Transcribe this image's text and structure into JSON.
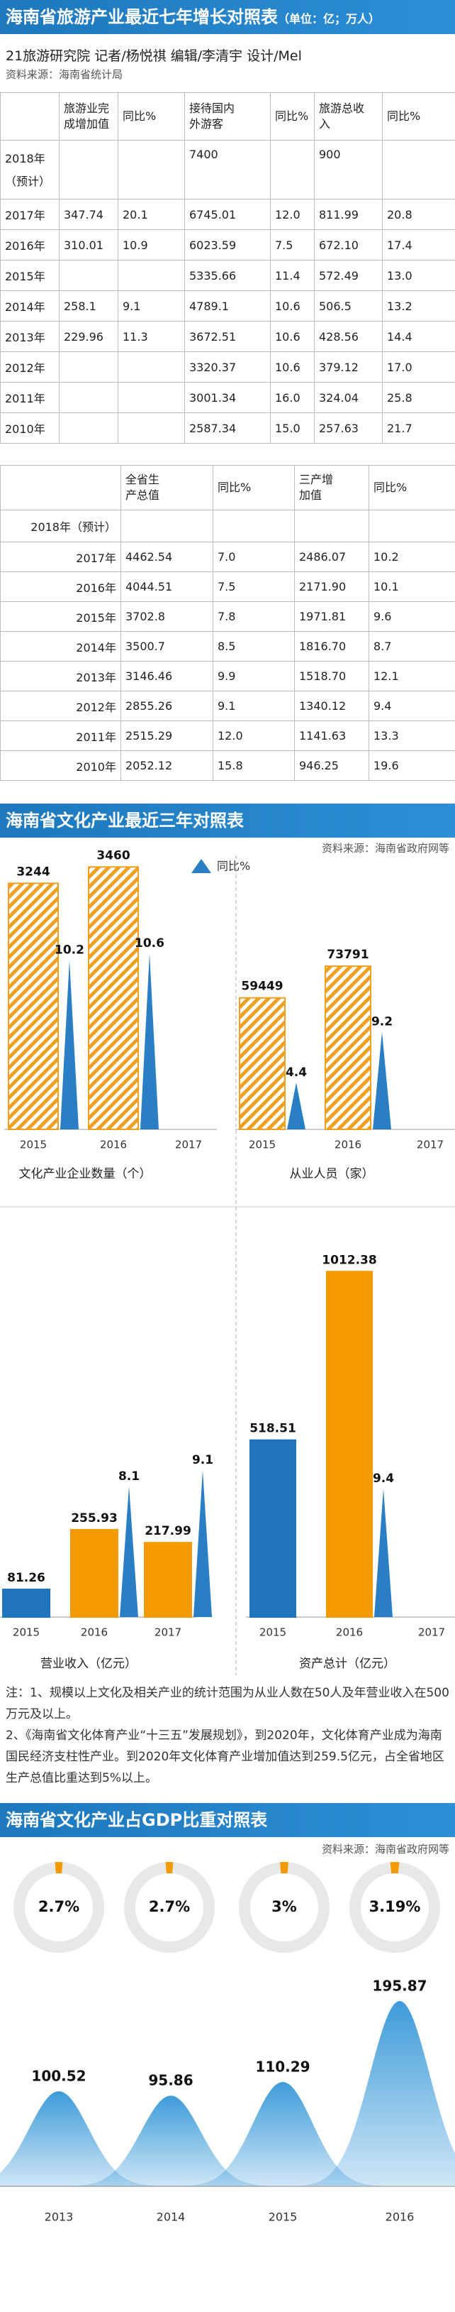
{
  "header1": {
    "title": "海南省旅游产业最近七年增长对照表",
    "unit": "（单位：亿；万人）"
  },
  "byline": "21旅游研究院 记者/杨悦祺 编辑/李清宇 设计/Mel",
  "source1": "资料来源：海南省统计局",
  "table1": {
    "columns": [
      "旅游业完成增加值",
      "同比%",
      "接待国内外游客",
      "同比%",
      "旅游总收入",
      "同比%"
    ],
    "rows": [
      {
        "year": "2018年（预计）",
        "cells": [
          null,
          null,
          "7400",
          null,
          "900",
          null
        ]
      },
      {
        "year": "2017年",
        "cells": [
          "347.74",
          "20.1",
          "6745.01",
          "12.0",
          "811.99",
          "20.8"
        ]
      },
      {
        "year": "2016年",
        "cells": [
          "310.01",
          "10.9",
          "6023.59",
          "7.5",
          "672.10",
          "17.4"
        ]
      },
      {
        "year": "2015年",
        "cells": [
          null,
          null,
          "5335.66",
          "11.4",
          "572.49",
          "13.0"
        ]
      },
      {
        "year": "2014年",
        "cells": [
          "258.1",
          "9.1",
          "4789.1",
          "10.6",
          "506.5",
          "13.2"
        ]
      },
      {
        "year": "2013年",
        "cells": [
          "229.96",
          "11.3",
          "3672.51",
          "10.6",
          "428.56",
          "14.4"
        ]
      },
      {
        "year": "2012年",
        "cells": [
          null,
          null,
          "3320.37",
          "10.6",
          "379.12",
          "17.0"
        ]
      },
      {
        "year": "2011年",
        "cells": [
          null,
          null,
          "3001.34",
          "16.0",
          "324.04",
          "25.8"
        ]
      },
      {
        "year": "2010年",
        "cells": [
          null,
          null,
          "2587.34",
          "15.0",
          "257.63",
          "21.7"
        ]
      }
    ]
  },
  "table2": {
    "columns": [
      "全省生产总值",
      "同比%",
      "三产增加值",
      "同比%"
    ],
    "rows": [
      {
        "year": "2018年（预计）",
        "cells": [
          null,
          null,
          null,
          null
        ]
      },
      {
        "year": "2017年",
        "cells": [
          "4462.54",
          "7.0",
          "2486.07",
          "10.2"
        ]
      },
      {
        "year": "2016年",
        "cells": [
          "4044.51",
          "7.5",
          "2171.90",
          "10.1"
        ]
      },
      {
        "year": "2015年",
        "cells": [
          "3702.8",
          "7.8",
          "1971.81",
          "9.6"
        ]
      },
      {
        "year": "2014年",
        "cells": [
          "3500.7",
          "8.5",
          "1816.70",
          "8.7"
        ]
      },
      {
        "year": "2013年",
        "cells": [
          "3146.46",
          "9.9",
          "1518.70",
          "12.1"
        ]
      },
      {
        "year": "2012年",
        "cells": [
          "2855.26",
          "9.1",
          "1340.12",
          "9.4"
        ]
      },
      {
        "year": "2011年",
        "cells": [
          "2515.29",
          "12.0",
          "1141.63",
          "13.3"
        ]
      },
      {
        "year": "2010年",
        "cells": [
          "2052.12",
          "15.8",
          "946.25",
          "19.6"
        ]
      }
    ]
  },
  "header2": "海南省文化产业最近三年对照表",
  "source2": "资料来源：海南省政府网等",
  "legend": {
    "label": "同比%",
    "color": "#2a7fc4"
  },
  "notes": [
    "注：1、规模以上文化及相关产业的统计范围为从业人数在50人及年营业收入在500万元及以上。",
    "2、《海南省文化体育产业“十三五”发展规划》，到2020年，文化体育产业成为海南国民经济支柱性产业。到2020年文化体育产业增加值达到259.5亿元，占全省地区生产总值比重达到5%以上。"
  ],
  "header3": "海南省文化产业占GDP比重对照表",
  "source3": "资料来源：海南省政府网等",
  "chart_data": [
    {
      "type": "bar",
      "title": "文化产业企业数量（个）",
      "categories": [
        "2015",
        "2016",
        "2017"
      ],
      "ylim": [
        0,
        3500
      ],
      "y2lim": [
        0,
        16
      ],
      "series": [
        {
          "values": [
            3244,
            3460,
            null
          ],
          "colors": [
            "#f0a020",
            "#f0a020",
            "#f0a020"
          ],
          "hatched": true
        },
        {
          "values": [
            10.2,
            10.6,
            null
          ],
          "color": "#2a7fc4",
          "axis": "y2"
        }
      ]
    },
    {
      "type": "bar",
      "title": "从业人员（家）",
      "categories": [
        "2015",
        "2016",
        "2017"
      ],
      "ylim": [
        0,
        120000
      ],
      "y2lim": [
        0,
        25
      ],
      "series": [
        {
          "values": [
            59449,
            73791,
            null
          ],
          "colors": [
            "#f0a020",
            "#f0a020",
            "#f0a020"
          ],
          "hatched": true
        },
        {
          "values": [
            4.4,
            9.2,
            null
          ],
          "color": "#2a7fc4",
          "axis": "y2"
        }
      ]
    },
    {
      "type": "bar",
      "title": "营业收入（亿元）",
      "categories": [
        "2015",
        "2016",
        "2017"
      ],
      "ylim": [
        0,
        1040
      ],
      "y2lim": [
        0,
        22
      ],
      "series": [
        {
          "values": [
            81.26,
            255.93,
            217.99
          ],
          "colors": [
            "#1f74bd",
            "#f39a00",
            "#f39a00"
          ],
          "hatched": false
        },
        {
          "values": [
            null,
            8.1,
            9.1
          ],
          "color": "#2a7fc4",
          "axis": "y2"
        }
      ]
    },
    {
      "type": "bar",
      "title": "资产总计（亿元）",
      "categories": [
        "2015",
        "2016",
        "2017"
      ],
      "ylim": [
        0,
        1040
      ],
      "y2lim": [
        0,
        26
      ],
      "series": [
        {
          "values": [
            518.51,
            1012.38,
            null
          ],
          "colors": [
            "#1f74bd",
            "#f39a00",
            "#f39a00"
          ],
          "hatched": false
        },
        {
          "values": [
            null,
            9.4,
            null
          ],
          "color": "#2a7fc4",
          "axis": "y2"
        }
      ]
    },
    {
      "type": "donut",
      "values": [
        2.7,
        2.7,
        3,
        3.19
      ],
      "value_labels": [
        "2.7%",
        "2.7%",
        "3%",
        "3.19%"
      ],
      "color": "#f39a00",
      "track_color": "#e8e8e8"
    },
    {
      "type": "area",
      "categories": [
        "2013",
        "2014",
        "2015",
        "2016"
      ],
      "values": [
        100.52,
        95.86,
        110.29,
        195.87
      ],
      "color": "#1b8ad3",
      "ylim": [
        0,
        210
      ]
    }
  ]
}
